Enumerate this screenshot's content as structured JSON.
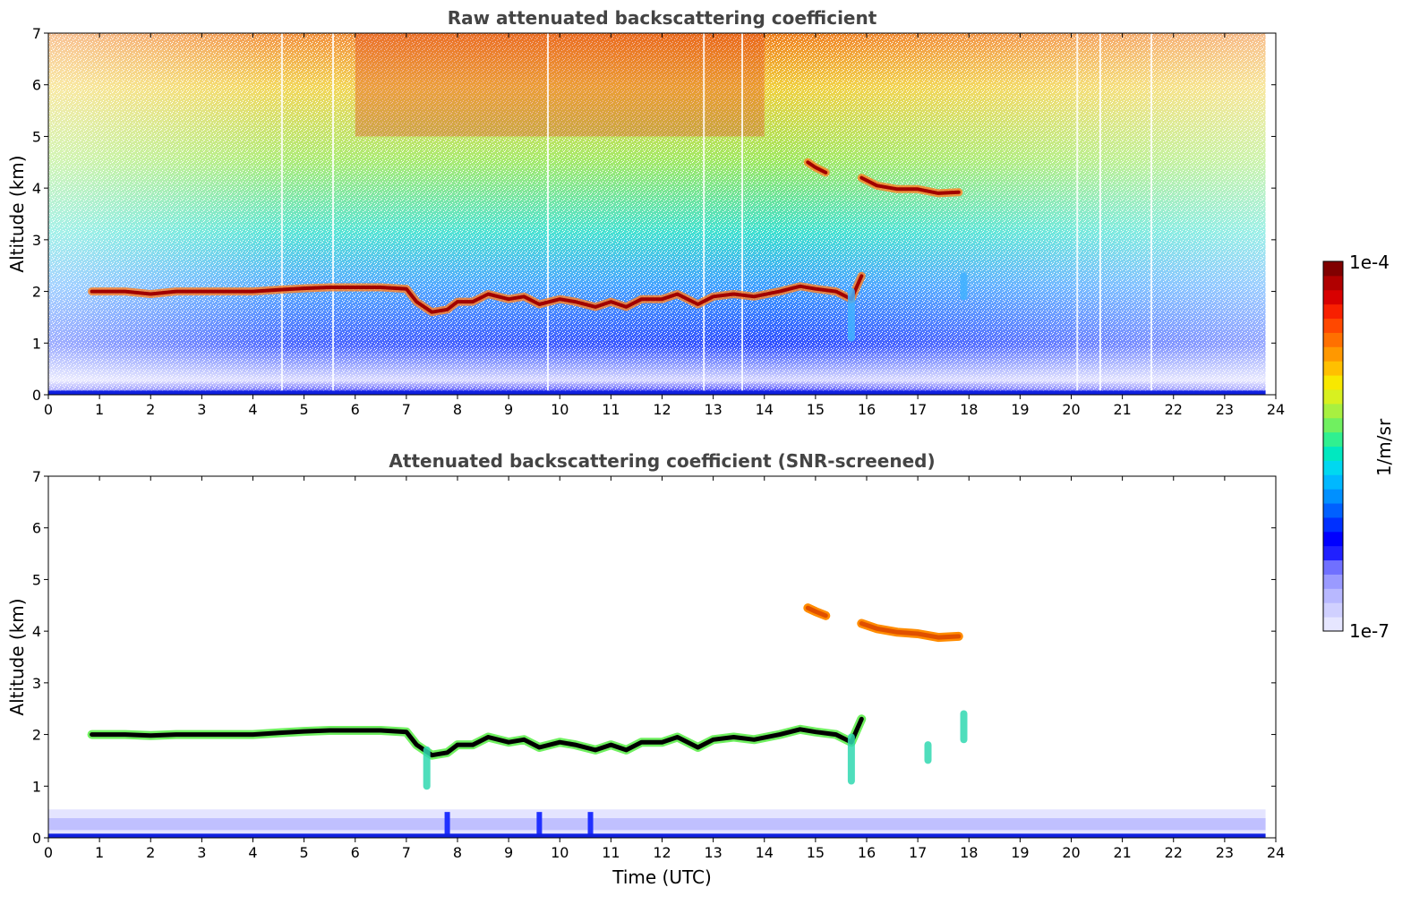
{
  "chart_data": [
    {
      "type": "heatmap",
      "title": "Raw attenuated backscattering coefficient",
      "xlabel": "",
      "ylabel": "Altitude (km)",
      "xlim": [
        0,
        24
      ],
      "ylim": [
        0,
        7
      ],
      "xticks": [
        "0",
        "1",
        "2",
        "3",
        "4",
        "5",
        "6",
        "7",
        "8",
        "9",
        "10",
        "11",
        "12",
        "13",
        "14",
        "15",
        "16",
        "17",
        "18",
        "19",
        "20",
        "21",
        "22",
        "23",
        "24"
      ],
      "yticks": [
        "0",
        "1",
        "2",
        "3",
        "4",
        "5",
        "6",
        "7"
      ],
      "data_end_time": 23.8,
      "features": [
        {
          "kind": "cloud_layer",
          "points": [
            [
              0.85,
              2.0
            ],
            [
              1.5,
              2.0
            ],
            [
              2.0,
              1.95
            ],
            [
              2.5,
              2.0
            ],
            [
              3.0,
              2.0
            ],
            [
              3.5,
              2.0
            ],
            [
              4.0,
              2.0
            ],
            [
              4.5,
              2.03
            ],
            [
              5.0,
              2.06
            ],
            [
              5.5,
              2.08
            ],
            [
              6.0,
              2.08
            ],
            [
              6.5,
              2.08
            ],
            [
              7.0,
              2.05
            ],
            [
              7.2,
              1.8
            ],
            [
              7.5,
              1.6
            ],
            [
              7.8,
              1.65
            ],
            [
              8.0,
              1.8
            ],
            [
              8.3,
              1.8
            ],
            [
              8.6,
              1.95
            ],
            [
              9.0,
              1.85
            ],
            [
              9.3,
              1.9
            ],
            [
              9.6,
              1.75
            ],
            [
              10.0,
              1.85
            ],
            [
              10.3,
              1.8
            ],
            [
              10.7,
              1.7
            ],
            [
              11.0,
              1.8
            ],
            [
              11.3,
              1.7
            ],
            [
              11.6,
              1.85
            ],
            [
              12.0,
              1.85
            ],
            [
              12.3,
              1.95
            ],
            [
              12.7,
              1.75
            ],
            [
              13.0,
              1.9
            ],
            [
              13.4,
              1.95
            ],
            [
              13.8,
              1.9
            ],
            [
              14.3,
              2.0
            ],
            [
              14.7,
              2.1
            ],
            [
              15.0,
              2.05
            ],
            [
              15.4,
              2.0
            ],
            [
              15.7,
              1.85
            ],
            [
              15.9,
              2.3
            ]
          ]
        },
        {
          "kind": "cloud_layer",
          "points": [
            [
              14.85,
              4.5
            ],
            [
              15.0,
              4.4
            ],
            [
              15.2,
              4.3
            ]
          ]
        },
        {
          "kind": "cloud_layer",
          "points": [
            [
              15.9,
              4.2
            ],
            [
              16.2,
              4.05
            ],
            [
              16.6,
              3.98
            ],
            [
              17.0,
              3.98
            ],
            [
              17.4,
              3.9
            ],
            [
              17.8,
              3.92
            ]
          ]
        },
        {
          "kind": "plume",
          "points": [
            [
              15.7,
              2.0
            ],
            [
              15.7,
              1.1
            ]
          ]
        },
        {
          "kind": "plume",
          "points": [
            [
              17.9,
              2.3
            ],
            [
              17.9,
              1.9
            ]
          ]
        }
      ]
    },
    {
      "type": "heatmap",
      "title": "Attenuated backscattering coefficient (SNR-screened)",
      "xlabel": "Time (UTC)",
      "ylabel": "Altitude (km)",
      "xlim": [
        0,
        24
      ],
      "ylim": [
        0,
        7
      ],
      "xticks": [
        "0",
        "1",
        "2",
        "3",
        "4",
        "5",
        "6",
        "7",
        "8",
        "9",
        "10",
        "11",
        "12",
        "13",
        "14",
        "15",
        "16",
        "17",
        "18",
        "19",
        "20",
        "21",
        "22",
        "23",
        "24"
      ],
      "yticks": [
        "0",
        "1",
        "2",
        "3",
        "4",
        "5",
        "6",
        "7"
      ],
      "data_end_time": 23.8,
      "features": [
        {
          "kind": "cloud_layer",
          "points": [
            [
              0.85,
              2.0
            ],
            [
              1.5,
              2.0
            ],
            [
              2.0,
              1.98
            ],
            [
              2.5,
              2.0
            ],
            [
              3.0,
              2.0
            ],
            [
              3.5,
              2.0
            ],
            [
              4.0,
              2.0
            ],
            [
              4.5,
              2.03
            ],
            [
              5.0,
              2.06
            ],
            [
              5.5,
              2.08
            ],
            [
              6.0,
              2.08
            ],
            [
              6.5,
              2.08
            ],
            [
              7.0,
              2.05
            ],
            [
              7.2,
              1.8
            ],
            [
              7.5,
              1.6
            ],
            [
              7.8,
              1.65
            ],
            [
              8.0,
              1.8
            ],
            [
              8.3,
              1.8
            ],
            [
              8.6,
              1.95
            ],
            [
              9.0,
              1.85
            ],
            [
              9.3,
              1.9
            ],
            [
              9.6,
              1.75
            ],
            [
              10.0,
              1.85
            ],
            [
              10.3,
              1.8
            ],
            [
              10.7,
              1.7
            ],
            [
              11.0,
              1.8
            ],
            [
              11.3,
              1.7
            ],
            [
              11.6,
              1.85
            ],
            [
              12.0,
              1.85
            ],
            [
              12.3,
              1.95
            ],
            [
              12.7,
              1.75
            ],
            [
              13.0,
              1.9
            ],
            [
              13.4,
              1.95
            ],
            [
              13.8,
              1.9
            ],
            [
              14.3,
              2.0
            ],
            [
              14.7,
              2.1
            ],
            [
              15.0,
              2.05
            ],
            [
              15.4,
              2.0
            ],
            [
              15.7,
              1.85
            ],
            [
              15.9,
              2.3
            ]
          ]
        },
        {
          "kind": "cloud_layer",
          "points": [
            [
              14.85,
              4.45
            ],
            [
              15.0,
              4.38
            ],
            [
              15.2,
              4.3
            ]
          ]
        },
        {
          "kind": "cloud_layer",
          "points": [
            [
              15.9,
              4.15
            ],
            [
              16.2,
              4.05
            ],
            [
              16.6,
              3.98
            ],
            [
              17.0,
              3.95
            ],
            [
              17.4,
              3.88
            ],
            [
              17.8,
              3.9
            ]
          ]
        },
        {
          "kind": "plume",
          "points": [
            [
              15.7,
              1.95
            ],
            [
              15.7,
              1.1
            ]
          ]
        },
        {
          "kind": "plume",
          "points": [
            [
              17.2,
              1.8
            ],
            [
              17.2,
              1.5
            ]
          ]
        },
        {
          "kind": "plume",
          "points": [
            [
              17.9,
              2.4
            ],
            [
              17.9,
              1.9
            ]
          ]
        },
        {
          "kind": "plume",
          "points": [
            [
              7.4,
              1.7
            ],
            [
              7.4,
              1.0
            ]
          ]
        }
      ]
    }
  ],
  "colorbar": {
    "label": "1/m/sr",
    "max_label": "1e-4",
    "min_label": "1e-7",
    "scale": "log",
    "colormap": "jet",
    "range": [
      1e-07,
      0.0001
    ]
  }
}
